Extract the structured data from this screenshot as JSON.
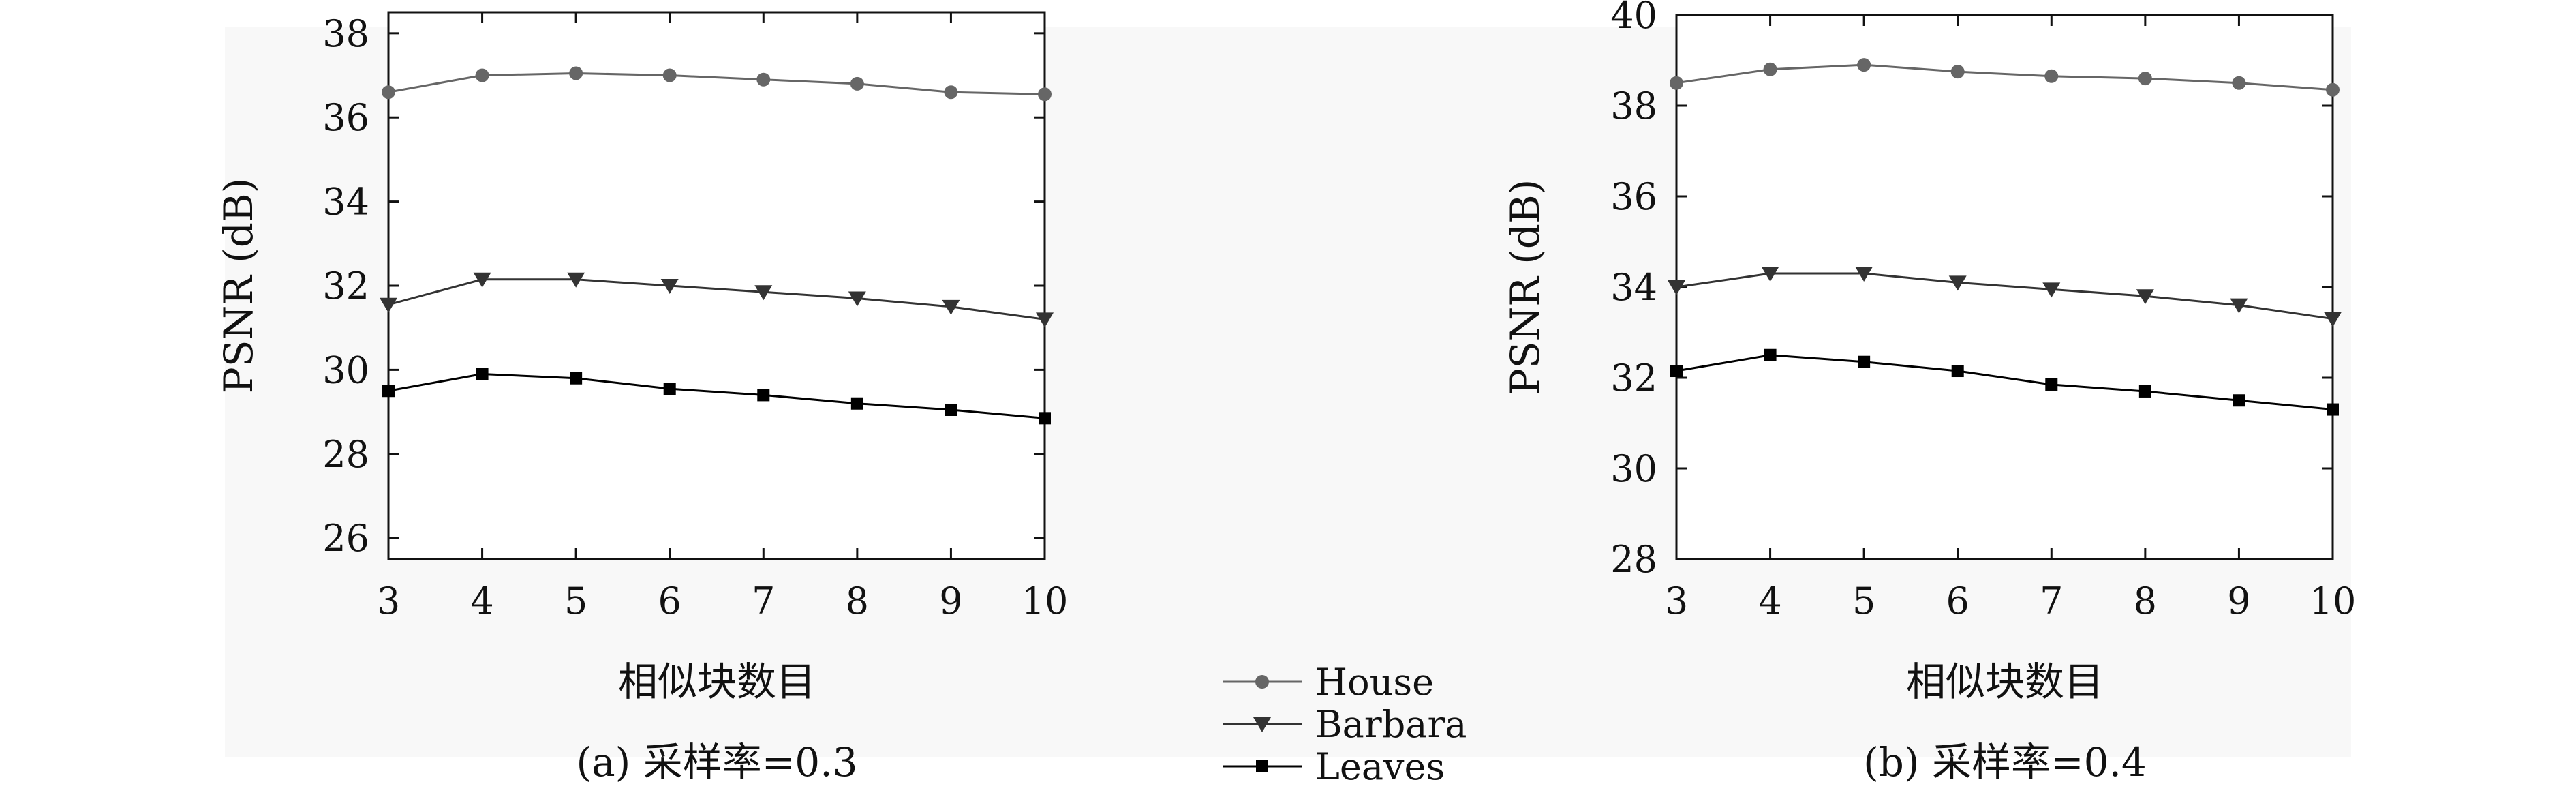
{
  "legend": {
    "placement": "bottom-center",
    "entries": [
      {
        "label": "House",
        "marker": "circle",
        "color": "#666666"
      },
      {
        "label": "Barbara",
        "marker": "triangle-down",
        "color": "#333333"
      },
      {
        "label": "Leaves",
        "marker": "square",
        "color": "#000000"
      }
    ]
  },
  "chart_data": [
    {
      "type": "line",
      "caption": "(a) 采样率=0.3",
      "xlabel": "相似块数目",
      "ylabel": "PSNR (dB)",
      "x": [
        3,
        4,
        5,
        6,
        7,
        8,
        9,
        10
      ],
      "xlim": [
        3,
        10
      ],
      "ylim": [
        25.5,
        38.5
      ],
      "yticks": [
        26,
        28,
        30,
        32,
        34,
        36,
        38
      ],
      "grid": false,
      "series": [
        {
          "name": "House",
          "marker": "circle",
          "color": "#666666",
          "values": [
            36.6,
            37.0,
            37.05,
            37.0,
            36.9,
            36.8,
            36.6,
            36.55
          ]
        },
        {
          "name": "Barbara",
          "marker": "triangle-down",
          "color": "#333333",
          "values": [
            31.55,
            32.15,
            32.15,
            32.0,
            31.85,
            31.7,
            31.5,
            31.2
          ]
        },
        {
          "name": "Leaves",
          "marker": "square",
          "color": "#000000",
          "values": [
            29.5,
            29.9,
            29.8,
            29.55,
            29.4,
            29.2,
            29.05,
            28.85
          ]
        }
      ]
    },
    {
      "type": "line",
      "caption": "(b) 采样率=0.4",
      "xlabel": "相似块数目",
      "ylabel": "PSNR (dB)",
      "x": [
        3,
        4,
        5,
        6,
        7,
        8,
        9,
        10
      ],
      "xlim": [
        3,
        10
      ],
      "ylim": [
        28,
        40
      ],
      "yticks": [
        28,
        30,
        32,
        34,
        36,
        38,
        40
      ],
      "grid": false,
      "series": [
        {
          "name": "House",
          "marker": "circle",
          "color": "#666666",
          "values": [
            38.5,
            38.8,
            38.9,
            38.75,
            38.65,
            38.6,
            38.5,
            38.35
          ]
        },
        {
          "name": "Barbara",
          "marker": "triangle-down",
          "color": "#333333",
          "values": [
            34.0,
            34.3,
            34.3,
            34.1,
            33.95,
            33.8,
            33.6,
            33.3
          ]
        },
        {
          "name": "Leaves",
          "marker": "square",
          "color": "#000000",
          "values": [
            32.15,
            32.5,
            32.35,
            32.15,
            31.85,
            31.7,
            31.5,
            31.3
          ]
        }
      ]
    }
  ]
}
